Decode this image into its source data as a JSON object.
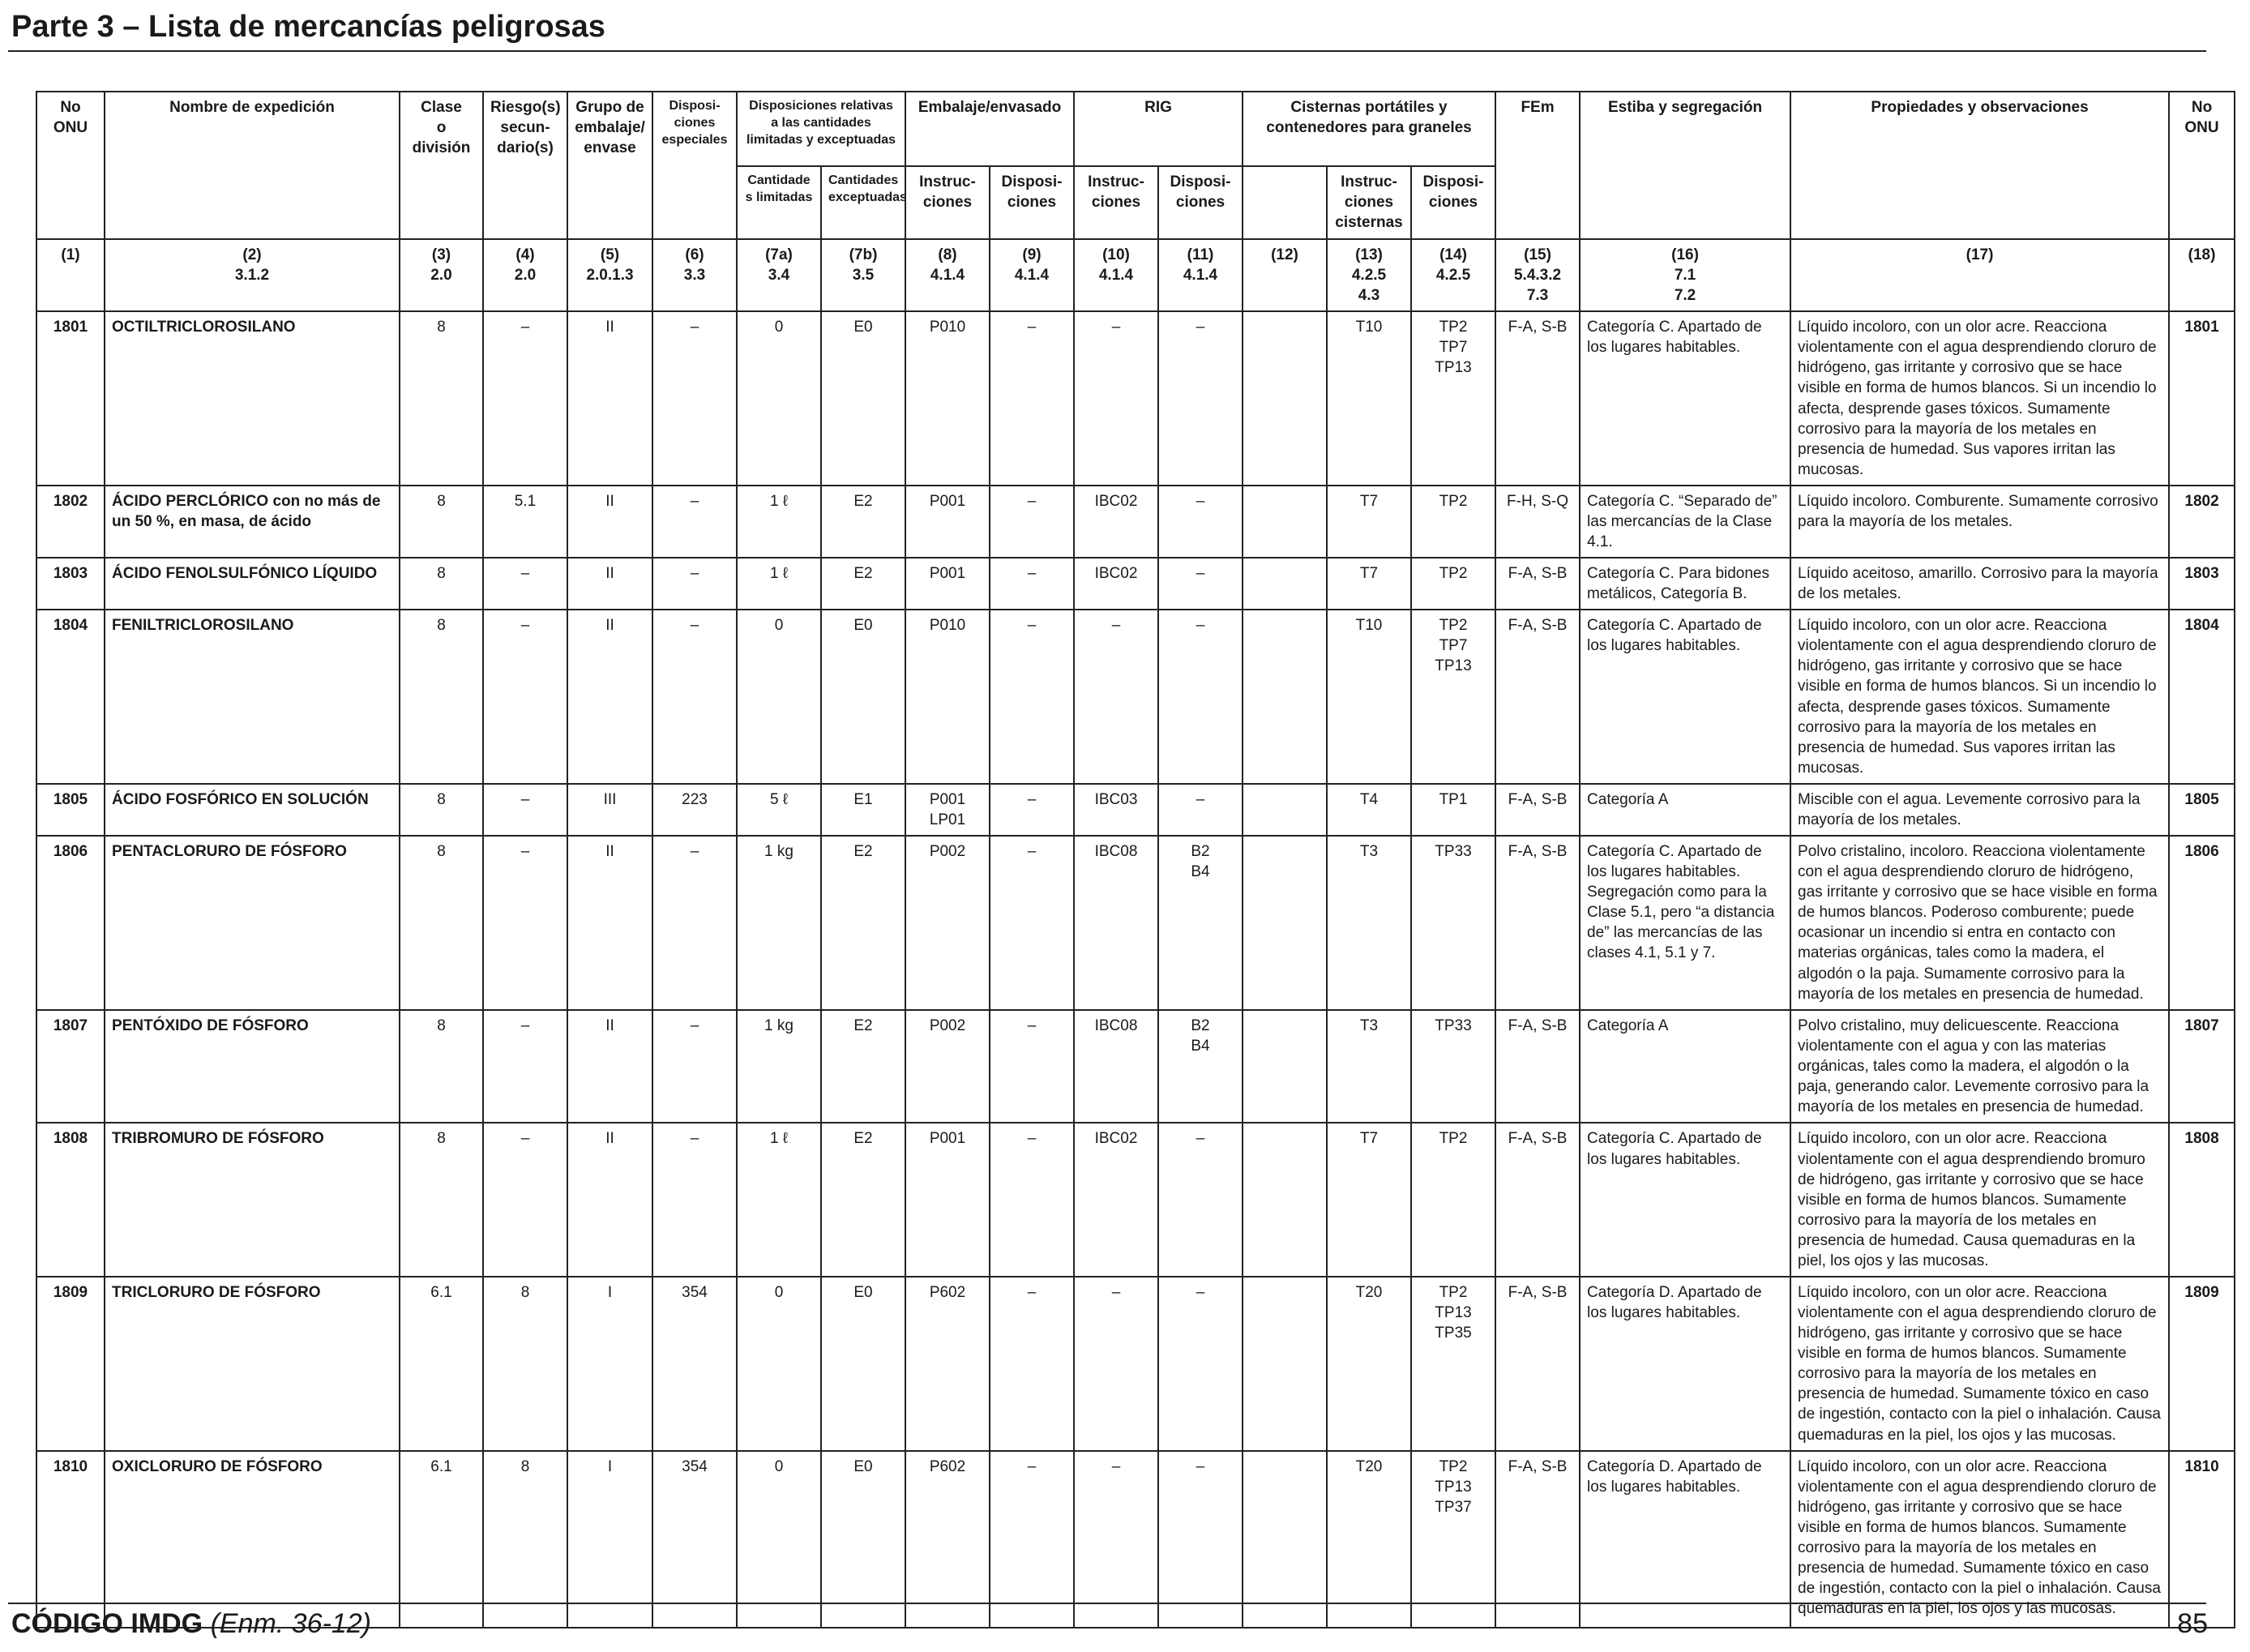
{
  "page": {
    "title": "Parte 3 – Lista de mercancías peligrosas",
    "footer_code": "CÓDIGO IMDG",
    "footer_edition": "(Enm. 36-12)",
    "page_number": "85"
  },
  "header": {
    "no_onu": "No\nONU",
    "nombre": "Nombre de expedición",
    "clase": "Clase\no\ndivisión",
    "riesgo": "Riesgo(s)\nsecun-\ndario(s)",
    "grupo": "Grupo de\nembalaje/\nenvase",
    "dispos_esp": "Disposi-\nciones\nespeciales",
    "disp_rel": "Disposiciones relativas\na las cantidades\nlimitadas y exceptuadas",
    "cant_lim": "Cantidade\ns limitadas",
    "cant_exc": "Cantidades\nexceptuadas",
    "embalaje": "Embalaje/envasado",
    "emb_instr": "Instruc-\nciones",
    "emb_disp": "Disposi-\nciones",
    "rig": "RIG",
    "rig_instr": "Instruc-\nciones",
    "rig_disp": "Disposi-\nciones",
    "cisternas": "Cisternas portátiles y\ncontenedores para graneles",
    "cis_instr": "Instruc-\nciones\ncisternas",
    "cis_disp": "Disposi-\nciones",
    "fem": "FEm",
    "estiba": "Estiba y segregación",
    "propiedades": "Propiedades y observaciones",
    "no_onu_right": "No\nONU"
  },
  "column_refs": [
    "(1)",
    "(2)\n3.1.2",
    "(3)\n2.0",
    "(4)\n2.0",
    "(5)\n2.0.1.3",
    "(6)\n3.3",
    "(7a)\n3.4",
    "(7b)\n3.5",
    "(8)\n4.1.4",
    "(9)\n4.1.4",
    "(10)\n4.1.4",
    "(11)\n4.1.4",
    "(12)",
    "(13)\n4.2.5\n4.3",
    "(14)\n4.2.5",
    "(15)\n5.4.3.2\n7.3",
    "(16)\n7.1\n7.2",
    "(17)",
    "(18)"
  ],
  "rows": [
    {
      "un": "1801",
      "name": "OCTILTRICLOROSILANO",
      "clase": "8",
      "riesgo": "–",
      "grupo": "II",
      "disp_esp": "–",
      "cant_lim": "0",
      "cant_exc": "E0",
      "emb_instr": "P010",
      "emb_disp": "–",
      "rig_instr": "–",
      "rig_disp": "–",
      "c12": "",
      "cis_instr": "T10",
      "cis_disp": "TP2\nTP7\nTP13",
      "fem": "F-A, S-B",
      "estiba": "Categoría C. Apartado de los lugares habitables.",
      "prop": "Líquido incoloro, con un olor acre. Reacciona violentamente con el agua desprendiendo cloruro de hidrógeno, gas irritante y corrosivo que se hace visible en forma de humos blancos. Si un incendio lo afecta, desprende gases tóxicos. Sumamente corrosivo para la mayoría de los metales en presencia de humedad. Sus vapores irritan las mucosas.",
      "un2": "1801"
    },
    {
      "un": "1802",
      "name": "ÁCIDO PERCLÓRICO con no más de un 50 %, en masa, de ácido",
      "clase": "8",
      "riesgo": "5.1",
      "grupo": "II",
      "disp_esp": "–",
      "cant_lim": "1 ℓ",
      "cant_exc": "E2",
      "emb_instr": "P001",
      "emb_disp": "–",
      "rig_instr": "IBC02",
      "rig_disp": "–",
      "c12": "",
      "cis_instr": "T7",
      "cis_disp": "TP2",
      "fem": "F-H, S-Q",
      "estiba": "Categoría C. “Separado de” las mercancías de la Clase 4.1.",
      "prop": "Líquido incoloro. Comburente. Sumamente corrosivo para la mayoría de los metales.",
      "un2": "1802"
    },
    {
      "un": "1803",
      "name": "ÁCIDO FENOLSULFÓNICO LÍQUIDO",
      "clase": "8",
      "riesgo": "–",
      "grupo": "II",
      "disp_esp": "–",
      "cant_lim": "1 ℓ",
      "cant_exc": "E2",
      "emb_instr": "P001",
      "emb_disp": "–",
      "rig_instr": "IBC02",
      "rig_disp": "–",
      "c12": "",
      "cis_instr": "T7",
      "cis_disp": "TP2",
      "fem": "F-A, S-B",
      "estiba": "Categoría C. Para bidones metálicos, Categoría B.",
      "prop": "Líquido aceitoso, amarillo. Corrosivo para la mayoría de los metales.",
      "un2": "1803"
    },
    {
      "un": "1804",
      "name": "FENILTRICLOROSILANO",
      "clase": "8",
      "riesgo": "–",
      "grupo": "II",
      "disp_esp": "–",
      "cant_lim": "0",
      "cant_exc": "E0",
      "emb_instr": "P010",
      "emb_disp": "–",
      "rig_instr": "–",
      "rig_disp": "–",
      "c12": "",
      "cis_instr": "T10",
      "cis_disp": "TP2\nTP7\nTP13",
      "fem": "F-A, S-B",
      "estiba": "Categoría C. Apartado de los lugares habitables.",
      "prop": "Líquido incoloro, con un olor acre. Reacciona violentamente con el agua desprendiendo cloruro de hidrógeno, gas irritante y corrosivo que se hace visible en forma de humos blancos. Si un incendio lo afecta, desprende gases tóxicos. Sumamente corrosivo para la mayoría de los metales en presencia de humedad. Sus vapores irritan las mucosas.",
      "un2": "1804"
    },
    {
      "un": "1805",
      "name": "ÁCIDO FOSFÓRICO EN SOLUCIÓN",
      "clase": "8",
      "riesgo": "–",
      "grupo": "III",
      "disp_esp": "223",
      "cant_lim": "5 ℓ",
      "cant_exc": "E1",
      "emb_instr": "P001\nLP01",
      "emb_disp": "–",
      "rig_instr": "IBC03",
      "rig_disp": "–",
      "c12": "",
      "cis_instr": "T4",
      "cis_disp": "TP1",
      "fem": "F-A, S-B",
      "estiba": "Categoría A",
      "prop": "Miscible con el agua. Levemente corrosivo para la mayoría de los metales.",
      "un2": "1805"
    },
    {
      "un": "1806",
      "name": "PENTACLORURO DE FÓSFORO",
      "clase": "8",
      "riesgo": "–",
      "grupo": "II",
      "disp_esp": "–",
      "cant_lim": "1 kg",
      "cant_exc": "E2",
      "emb_instr": "P002",
      "emb_disp": "–",
      "rig_instr": "IBC08",
      "rig_disp": "B2\nB4",
      "c12": "",
      "cis_instr": "T3",
      "cis_disp": "TP33",
      "fem": "F-A, S-B",
      "estiba": "Categoría C. Apartado de los lugares habitables. Segregación como para la Clase 5.1, pero “a distancia de” las mercancías de las clases 4.1, 5.1 y 7.",
      "prop": "Polvo cristalino, incoloro. Reacciona violentamente con el agua desprendiendo cloruro de hidrógeno, gas irritante y corrosivo que se hace visible en forma de humos blancos. Poderoso comburente; puede ocasionar un incendio si entra en contacto con materias orgánicas, tales como la madera, el algodón o la paja. Sumamente corrosivo para la mayoría de los metales en presencia de humedad.",
      "un2": "1806"
    },
    {
      "un": "1807",
      "name": "PENTÓXIDO DE FÓSFORO",
      "clase": "8",
      "riesgo": "–",
      "grupo": "II",
      "disp_esp": "–",
      "cant_lim": "1 kg",
      "cant_exc": "E2",
      "emb_instr": "P002",
      "emb_disp": "–",
      "rig_instr": "IBC08",
      "rig_disp": "B2\nB4",
      "c12": "",
      "cis_instr": "T3",
      "cis_disp": "TP33",
      "fem": "F-A, S-B",
      "estiba": "Categoría A",
      "prop": "Polvo cristalino, muy delicuescente. Reacciona violentamente con el agua y con las materias orgánicas, tales como la madera, el algodón o la paja, generando calor. Levemente corrosivo para la mayoría de los metales en presencia de humedad.",
      "un2": "1807"
    },
    {
      "un": "1808",
      "name": "TRIBROMURO DE FÓSFORO",
      "clase": "8",
      "riesgo": "–",
      "grupo": "II",
      "disp_esp": "–",
      "cant_lim": "1 ℓ",
      "cant_exc": "E2",
      "emb_instr": "P001",
      "emb_disp": "–",
      "rig_instr": "IBC02",
      "rig_disp": "–",
      "c12": "",
      "cis_instr": "T7",
      "cis_disp": "TP2",
      "fem": "F-A, S-B",
      "estiba": "Categoría C. Apartado de los lugares habitables.",
      "prop": "Líquido incoloro, con un olor acre. Reacciona violentamente con el agua desprendiendo bromuro de hidrógeno, gas irritante y corrosivo que se hace visible en forma de humos blancos. Sumamente corrosivo para la mayoría de los metales en presencia de humedad. Causa quemaduras en la piel, los ojos y las mucosas.",
      "un2": "1808"
    },
    {
      "un": "1809",
      "name": "TRICLORURO DE FÓSFORO",
      "clase": "6.1",
      "riesgo": "8",
      "grupo": "I",
      "disp_esp": "354",
      "cant_lim": "0",
      "cant_exc": "E0",
      "emb_instr": "P602",
      "emb_disp": "–",
      "rig_instr": "–",
      "rig_disp": "–",
      "c12": "",
      "cis_instr": "T20",
      "cis_disp": "TP2\nTP13\nTP35",
      "fem": "F-A, S-B",
      "estiba": "Categoría D. Apartado de los lugares habitables.",
      "prop": "Líquido incoloro, con un olor acre. Reacciona violentamente con el agua desprendiendo cloruro de hidrógeno, gas irritante y corrosivo que se hace visible en forma de humos blancos. Sumamente corrosivo para la mayoría de los metales en presencia de humedad. Sumamente tóxico en caso de ingestión, contacto con la piel o inhalación. Causa quemaduras en la piel, los ojos y las mucosas.",
      "un2": "1809"
    },
    {
      "un": "1810",
      "name": "OXICLORURO DE FÓSFORO",
      "clase": "6.1",
      "riesgo": "8",
      "grupo": "I",
      "disp_esp": "354",
      "cant_lim": "0",
      "cant_exc": "E0",
      "emb_instr": "P602",
      "emb_disp": "–",
      "rig_instr": "–",
      "rig_disp": "–",
      "c12": "",
      "cis_instr": "T20",
      "cis_disp": "TP2\nTP13\nTP37",
      "fem": "F-A, S-B",
      "estiba": "Categoría D. Apartado de los lugares habitables.",
      "prop": "Líquido incoloro, con un olor acre. Reacciona violentamente con el agua desprendiendo cloruro de hidrógeno, gas irritante y corrosivo que se hace visible en forma de humos blancos. Sumamente corrosivo para la mayoría de los metales en presencia de humedad. Sumamente tóxico en caso de ingestión, contacto con la piel o inhalación. Causa quemaduras en la piel, los ojos y las mucosas.",
      "un2": "1810"
    }
  ]
}
